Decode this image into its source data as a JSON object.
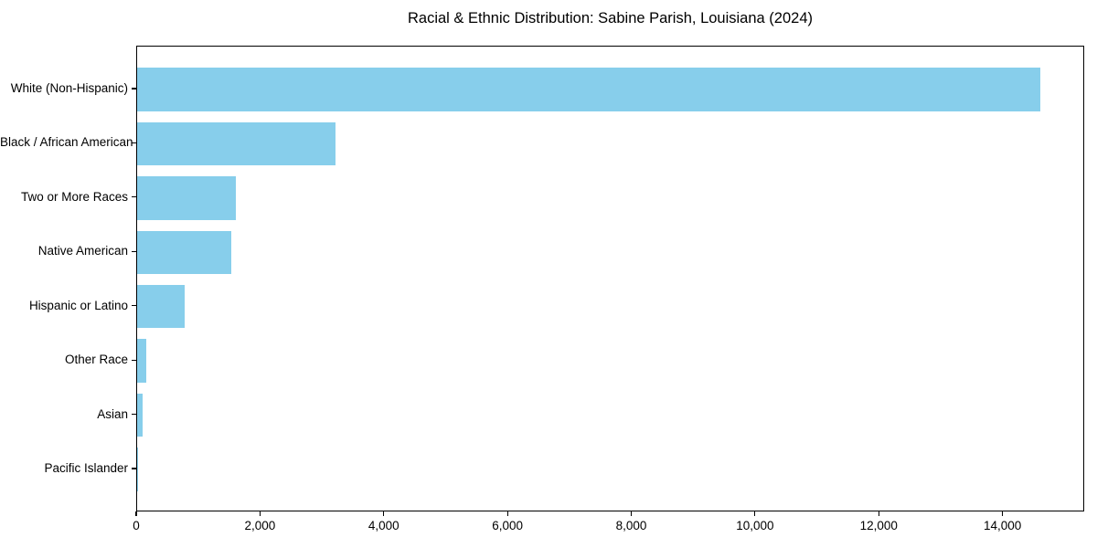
{
  "chart_data": {
    "type": "bar",
    "orientation": "horizontal",
    "title": "Racial & Ethnic Distribution: Sabine Parish, Louisiana (2024)",
    "categories": [
      "White (Non-Hispanic)",
      "Black / African American",
      "Two or More Races",
      "Native American",
      "Hispanic or Latino",
      "Other Race",
      "Asian",
      "Pacific Islander"
    ],
    "values": [
      14590,
      3210,
      1600,
      1515,
      765,
      150,
      90,
      10
    ],
    "bar_color": "#87CEEB",
    "text_color": "#000000",
    "axis_color": "#000000",
    "background_color": "#ffffff",
    "xlabel": "",
    "ylabel": "",
    "xlim": [
      0,
      15320
    ],
    "x_ticks": [
      0,
      2000,
      4000,
      6000,
      8000,
      10000,
      12000,
      14000
    ],
    "x_tick_labels": [
      "0",
      "2,000",
      "4,000",
      "6,000",
      "8,000",
      "10,000",
      "12,000",
      "14,000"
    ],
    "grid": false,
    "legend": false,
    "sort": "descending"
  }
}
